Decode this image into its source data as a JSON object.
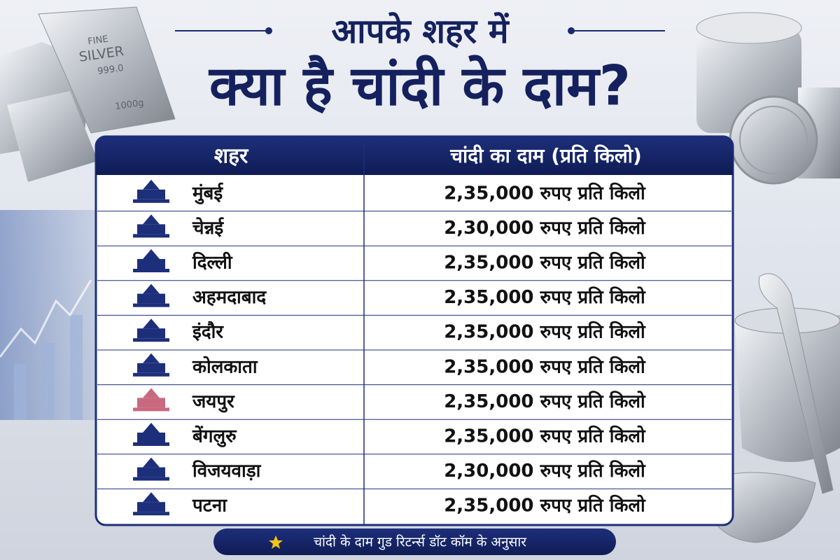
{
  "header": {
    "title_line1": "आपके शहर में",
    "title_line2": "क्या है चांदी के दाम?"
  },
  "decoration": {
    "bar_texts": [
      "FINE",
      "SILVER",
      "999.0",
      "1000g"
    ]
  },
  "table": {
    "headers": [
      "शहर",
      "चांदी का दाम (प्रति किलो)"
    ],
    "rows": [
      {
        "city": "मुंबई",
        "price": "2,35,000 रुपए प्रति किलो"
      },
      {
        "city": "चेन्नई",
        "price": "2,30,000 रुपए प्रति किलो"
      },
      {
        "city": "दिल्ली",
        "price": "2,35,000 रुपए प्रति किलो"
      },
      {
        "city": "अहमदाबाद",
        "price": "2,35,000 रुपए प्रति किलो"
      },
      {
        "city": "इंदौर",
        "price": "2,35,000 रुपए प्रति किलो"
      },
      {
        "city": "कोलकाता",
        "price": "2,35,000 रुपए प्रति किलो"
      },
      {
        "city": "जयपुर",
        "price": "2,35,000 रुपए प्रति किलो"
      },
      {
        "city": "बेंगलुरु",
        "price": "2,35,000 रुपए प्रति किलो"
      },
      {
        "city": "विजयवाड़ा",
        "price": "2,30,000 रुपए प्रति किलो"
      },
      {
        "city": "पटना",
        "price": "2,35,000 रुपए प्रति किलो"
      }
    ]
  },
  "footer": {
    "note": "चांदी के दाम गुड रिटर्न्स डॉट कॉम के अनुसार"
  }
}
